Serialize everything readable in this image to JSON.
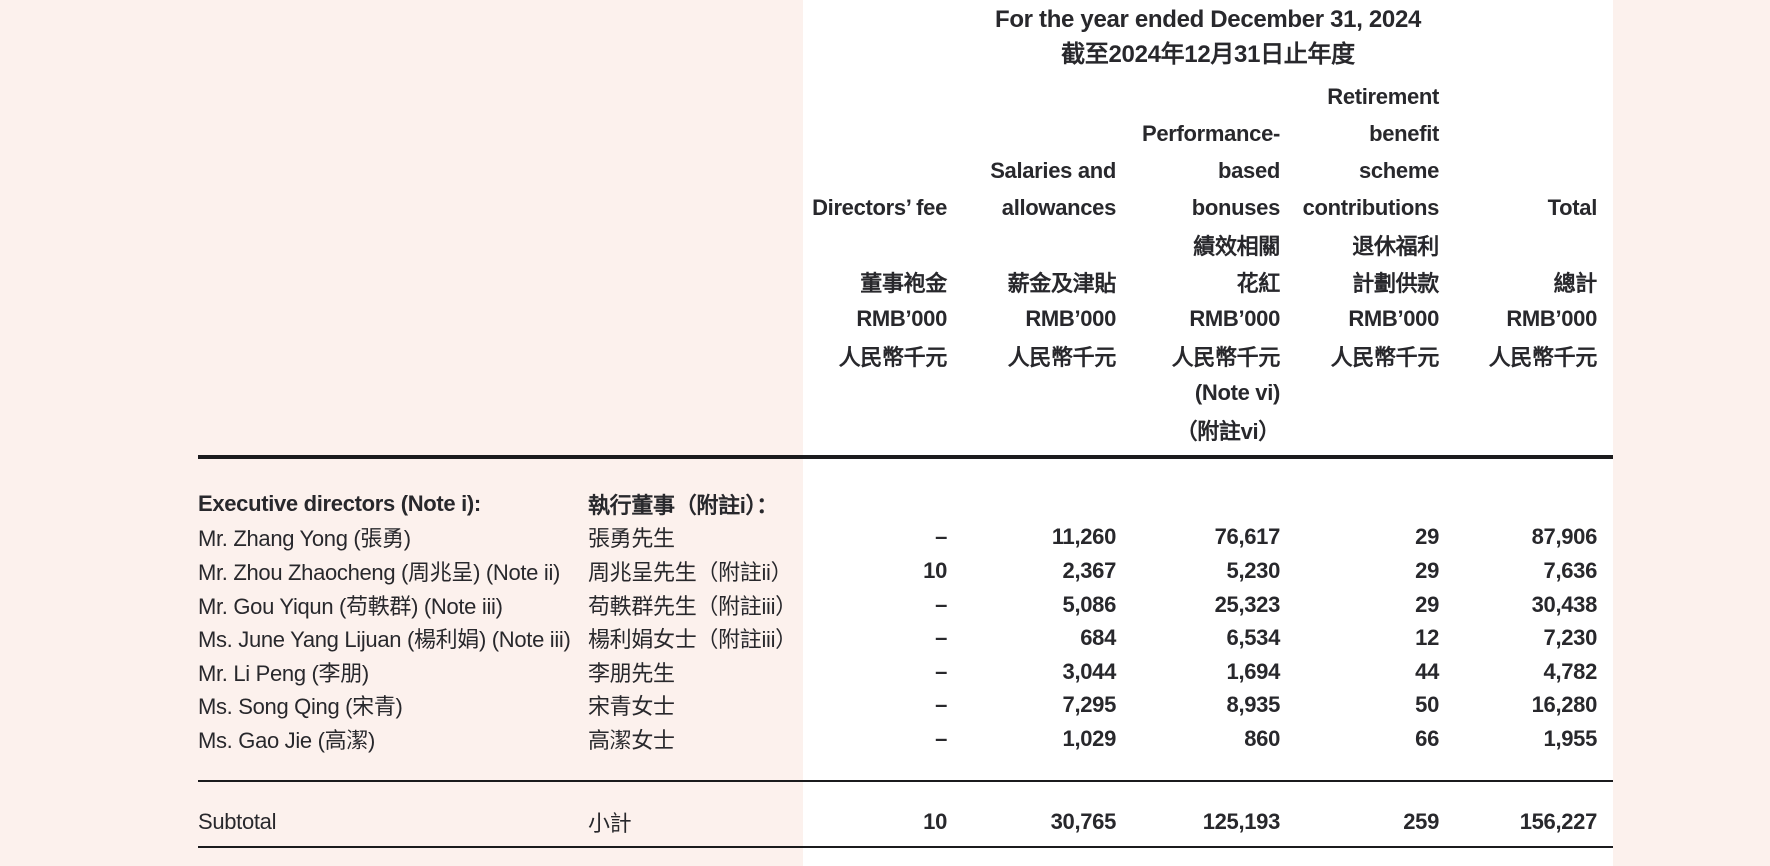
{
  "page": {
    "background_color": "#fcf1ed",
    "panel_color": "#ffffff",
    "text_color": "#28282c",
    "line_color": "#1b1b1d"
  },
  "table": {
    "period": {
      "en": "For the year ended December 31, 2024",
      "zh": "截至2024年12月31日止年度"
    },
    "column_names": [
      "Directors’ fee",
      "Salaries and allowances",
      "Performance-based bonuses",
      "Retirement benefit scheme contributions",
      "Total"
    ],
    "header_lines": [
      [
        "",
        "",
        "",
        "Retirement",
        ""
      ],
      [
        "",
        "",
        "Performance-",
        "benefit",
        ""
      ],
      [
        "",
        "Salaries and",
        "based",
        "scheme",
        ""
      ],
      [
        "Directors’ fee",
        "allowances",
        "bonuses",
        "contributions",
        "Total"
      ],
      [
        "",
        "",
        "績效相關",
        "退休福利",
        ""
      ],
      [
        "董事袍金",
        "薪金及津貼",
        "花紅",
        "計劃供款",
        "總計"
      ],
      [
        "RMB’000",
        "RMB’000",
        "RMB’000",
        "RMB’000",
        "RMB’000"
      ],
      [
        "人民幣千元",
        "人民幣千元",
        "人民幣千元",
        "人民幣千元",
        "人民幣千元"
      ],
      [
        "",
        "",
        "(Note vi)",
        "",
        ""
      ],
      [
        "",
        "",
        "（附註vi）",
        "",
        ""
      ]
    ],
    "rows": [
      {
        "name_en": "Executive directors (Note i):",
        "name_zh": "執行董事（附註i）：",
        "bold_name": true,
        "values": [
          "",
          "",
          "",
          "",
          ""
        ]
      },
      {
        "name_en": "Mr. Zhang Yong (張勇)",
        "name_zh": "張勇先生",
        "bold_name": false,
        "values": [
          "–",
          "11,260",
          "76,617",
          "29",
          "87,906"
        ]
      },
      {
        "name_en": "Mr. Zhou Zhaocheng (周兆呈) (Note ii)",
        "name_zh": "周兆呈先生（附註ii）",
        "bold_name": false,
        "values": [
          "10",
          "2,367",
          "5,230",
          "29",
          "7,636"
        ]
      },
      {
        "name_en": "Mr. Gou Yiqun (苟軼群) (Note iii)",
        "name_zh": "苟軼群先生（附註iii）",
        "bold_name": false,
        "values": [
          "–",
          "5,086",
          "25,323",
          "29",
          "30,438"
        ]
      },
      {
        "name_en": "Ms. June Yang Lijuan (楊利娟) (Note iii)",
        "name_zh": "楊利娟女士（附註iii）",
        "bold_name": false,
        "values": [
          "–",
          "684",
          "6,534",
          "12",
          "7,230"
        ]
      },
      {
        "name_en": "Mr. Li Peng (李朋)",
        "name_zh": "李朋先生",
        "bold_name": false,
        "values": [
          "–",
          "3,044",
          "1,694",
          "44",
          "4,782"
        ]
      },
      {
        "name_en": "Ms. Song Qing (宋青)",
        "name_zh": "宋青女士",
        "bold_name": false,
        "values": [
          "–",
          "7,295",
          "8,935",
          "50",
          "16,280"
        ]
      },
      {
        "name_en": "Ms. Gao Jie (高潔)",
        "name_zh": "高潔女士",
        "bold_name": false,
        "values": [
          "–",
          "1,029",
          "860",
          "66",
          "1,955"
        ]
      }
    ],
    "subtotal": {
      "label_en": "Subtotal",
      "label_zh": "小計",
      "values": [
        "10",
        "30,765",
        "125,193",
        "259",
        "156,227"
      ]
    }
  }
}
